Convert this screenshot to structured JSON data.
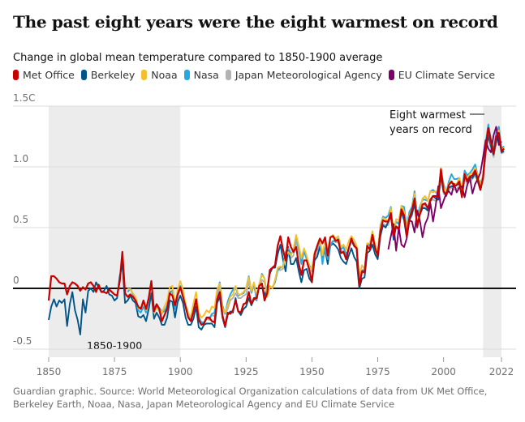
{
  "title": "The past eight years were the eight warmest on record",
  "subtitle": "Change in global mean temperature compared to 1850-1900 average",
  "footer": "Guardian graphic. Source: World Meteorological Organization calculations of data from UK Met Office, Berkeley Earth, Noaa, Nasa, Japan Meteorological Agency and EU Climate Service",
  "colors": {
    "grid": "#dcdcdc",
    "zero_line": "#121212",
    "shade": "#ececec"
  },
  "chart_data": {
    "type": "line",
    "xlim": [
      1850,
      2022
    ],
    "ylim": [
      -0.5,
      1.5
    ],
    "x_ticks": [
      "1850",
      "1875",
      "1900",
      "1925",
      "1950",
      "1975",
      "2000",
      "2022"
    ],
    "y_ticks": [
      "1.5C",
      "1.0",
      "0.5",
      "0",
      "-0.5"
    ],
    "shaded_periods": [
      {
        "range": [
          1850,
          1900
        ],
        "label": "1850-1900"
      },
      {
        "range": [
          2015,
          2022
        ],
        "label": ""
      }
    ],
    "annotation": {
      "line1": "Eight warmest",
      "line2": "years on record"
    },
    "series": [
      {
        "name": "Met Office",
        "color": "#c70000",
        "start_year": 1850,
        "values": [
          -0.1,
          0.1,
          0.1,
          0.08,
          0.05,
          0.04,
          0.04,
          -0.05,
          0.02,
          0.05,
          0.04,
          0.02,
          -0.02,
          0.01,
          -0.01,
          0.04,
          0.05,
          0.02,
          -0.03,
          0.03,
          -0.03,
          -0.03,
          -0.04,
          -0.01,
          -0.03,
          -0.05,
          -0.06,
          0.06,
          0.3,
          -0.04,
          -0.07,
          -0.05,
          -0.07,
          -0.1,
          -0.15,
          -0.17,
          -0.1,
          -0.17,
          -0.08,
          0.06,
          -0.19,
          -0.13,
          -0.17,
          -0.27,
          -0.22,
          -0.17,
          -0.04,
          -0.06,
          -0.14,
          -0.05,
          0.01,
          -0.07,
          -0.15,
          -0.24,
          -0.27,
          -0.19,
          -0.09,
          -0.26,
          -0.3,
          -0.29,
          -0.24,
          -0.24,
          -0.27,
          -0.28,
          -0.09,
          -0.03,
          -0.22,
          -0.31,
          -0.2,
          -0.21,
          -0.18,
          -0.1,
          -0.19,
          -0.2,
          -0.13,
          -0.12,
          -0.03,
          -0.13,
          -0.08,
          -0.08,
          0.02,
          0.04,
          -0.1,
          -0.04,
          0.15,
          0.17,
          0.19,
          0.35,
          0.43,
          0.32,
          0.23,
          0.42,
          0.34,
          0.3,
          0.34,
          0.2,
          0.11,
          0.23,
          0.23,
          0.15,
          0.05,
          0.28,
          0.35,
          0.41,
          0.37,
          0.42,
          0.27,
          0.42,
          0.43,
          0.39,
          0.4,
          0.29,
          0.3,
          0.24,
          0.33,
          0.41,
          0.35,
          0.33,
          0.02,
          0.14,
          0.13,
          0.35,
          0.32,
          0.44,
          0.33,
          0.27,
          0.47,
          0.56,
          0.55,
          0.55,
          0.62,
          0.44,
          0.51,
          0.49,
          0.65,
          0.6,
          0.43,
          0.58,
          0.64,
          0.74,
          0.51,
          0.61,
          0.69,
          0.7,
          0.66,
          0.73,
          0.76,
          0.76,
          0.75,
          0.98,
          0.8,
          0.77,
          0.85,
          0.88,
          0.84,
          0.85,
          0.88,
          0.75,
          0.94,
          0.88,
          0.92,
          0.93,
          0.97,
          0.9,
          0.81,
          0.91,
          1.16,
          1.32,
          1.21,
          1.11,
          1.25,
          1.28,
          1.13,
          1.15
        ]
      },
      {
        "name": "Berkeley",
        "color": "#005689",
        "start_year": 1850,
        "values": [
          -0.26,
          -0.15,
          -0.09,
          -0.15,
          -0.1,
          -0.12,
          -0.09,
          -0.31,
          -0.13,
          -0.03,
          -0.18,
          -0.26,
          -0.38,
          -0.09,
          -0.2,
          -0.02,
          0.0,
          -0.03,
          0.05,
          0.01,
          -0.03,
          -0.02,
          0.02,
          -0.05,
          -0.06,
          -0.1,
          -0.08,
          0.1,
          0.2,
          -0.12,
          -0.1,
          -0.06,
          -0.1,
          -0.12,
          -0.23,
          -0.24,
          -0.22,
          -0.27,
          -0.17,
          -0.04,
          -0.25,
          -0.2,
          -0.24,
          -0.3,
          -0.3,
          -0.24,
          -0.1,
          -0.11,
          -0.24,
          -0.11,
          -0.06,
          -0.12,
          -0.24,
          -0.3,
          -0.3,
          -0.25,
          -0.15,
          -0.32,
          -0.34,
          -0.3,
          -0.29,
          -0.29,
          -0.29,
          -0.32,
          -0.12,
          -0.07,
          -0.24,
          -0.32,
          -0.22,
          -0.19,
          -0.2,
          -0.08,
          -0.19,
          -0.22,
          -0.17,
          -0.15,
          -0.08,
          -0.14,
          -0.09,
          -0.09,
          0.02,
          0.04,
          -0.06,
          0.0,
          0.12,
          0.17,
          0.17,
          0.28,
          0.36,
          0.24,
          0.14,
          0.34,
          0.2,
          0.2,
          0.25,
          0.14,
          0.05,
          0.15,
          0.16,
          0.08,
          0.05,
          0.23,
          0.26,
          0.34,
          0.26,
          0.32,
          0.2,
          0.35,
          0.37,
          0.35,
          0.32,
          0.25,
          0.22,
          0.2,
          0.27,
          0.33,
          0.26,
          0.22,
          -0.0,
          0.08,
          0.09,
          0.29,
          0.31,
          0.36,
          0.28,
          0.24,
          0.43,
          0.52,
          0.5,
          0.55,
          0.6,
          0.4,
          0.51,
          0.48,
          0.63,
          0.56,
          0.42,
          0.56,
          0.61,
          0.7,
          0.5,
          0.61,
          0.66,
          0.66,
          0.64,
          0.72,
          0.76,
          0.74,
          0.73,
          0.93,
          0.8,
          0.76,
          0.83,
          0.84,
          0.84,
          0.85,
          0.86,
          0.78,
          0.91,
          0.9,
          0.91,
          0.91,
          0.95,
          0.88,
          0.81,
          0.91,
          1.12,
          1.26,
          1.17,
          1.1,
          1.21,
          1.26,
          1.12,
          1.13
        ]
      },
      {
        "name": "Noaa",
        "color": "#f5be2c",
        "start_year": 1880,
        "values": [
          -0.0,
          -0.01,
          -0.04,
          -0.07,
          -0.16,
          -0.17,
          -0.12,
          -0.18,
          -0.07,
          0.06,
          -0.2,
          -0.16,
          -0.17,
          -0.2,
          -0.15,
          -0.1,
          0.01,
          0.02,
          -0.14,
          -0.01,
          0.06,
          -0.01,
          -0.13,
          -0.2,
          -0.24,
          -0.12,
          -0.03,
          -0.2,
          -0.24,
          -0.22,
          -0.18,
          -0.2,
          -0.15,
          -0.16,
          -0.01,
          0.04,
          -0.16,
          -0.2,
          -0.14,
          -0.07,
          -0.05,
          0.02,
          -0.05,
          -0.05,
          -0.03,
          0.0,
          0.09,
          -0.02,
          0.05,
          -0.06,
          0.04,
          0.11,
          0.08,
          -0.07,
          0.02,
          0.0,
          0.07,
          0.17,
          0.18,
          0.17,
          0.27,
          0.3,
          0.27,
          0.33,
          0.44,
          0.35,
          0.25,
          0.33,
          0.27,
          0.18,
          0.16,
          0.3,
          0.34,
          0.41,
          0.27,
          0.39,
          0.31,
          0.42,
          0.44,
          0.41,
          0.43,
          0.34,
          0.36,
          0.32,
          0.39,
          0.43,
          0.4,
          0.35,
          0.08,
          0.19,
          0.16,
          0.37,
          0.37,
          0.47,
          0.36,
          0.3,
          0.51,
          0.58,
          0.57,
          0.55,
          0.66,
          0.47,
          0.57,
          0.56,
          0.68,
          0.63,
          0.48,
          0.6,
          0.65,
          0.78,
          0.51,
          0.64,
          0.74,
          0.76,
          0.72,
          0.8,
          0.79,
          0.8,
          0.77,
          0.99,
          0.83,
          0.8,
          0.86,
          0.88,
          0.86,
          0.86,
          0.91,
          0.81,
          0.94,
          0.91,
          0.94,
          0.95,
          0.99,
          0.93,
          0.84,
          0.93,
          1.17,
          1.31,
          1.2,
          1.12,
          1.25,
          1.3,
          1.13,
          1.16
        ]
      },
      {
        "name": "Nasa",
        "color": "#27a8df",
        "start_year": 1880,
        "values": [
          -0.03,
          -0.0,
          -0.05,
          -0.09,
          -0.18,
          -0.2,
          -0.15,
          -0.2,
          -0.09,
          0.04,
          -0.17,
          -0.13,
          -0.16,
          -0.19,
          -0.19,
          -0.14,
          -0.03,
          -0.02,
          -0.17,
          -0.05,
          0.02,
          -0.05,
          -0.16,
          -0.23,
          -0.27,
          -0.17,
          -0.09,
          -0.24,
          -0.28,
          -0.28,
          -0.24,
          -0.25,
          -0.21,
          -0.2,
          -0.02,
          0.05,
          -0.14,
          -0.21,
          -0.11,
          -0.05,
          -0.01,
          0.01,
          -0.06,
          -0.05,
          -0.04,
          0.0,
          0.1,
          -0.03,
          0.04,
          -0.1,
          0.03,
          0.12,
          0.08,
          -0.06,
          0.01,
          0.01,
          0.05,
          0.15,
          0.17,
          0.18,
          0.3,
          0.33,
          0.29,
          0.3,
          0.43,
          0.33,
          0.2,
          0.31,
          0.24,
          0.19,
          0.16,
          0.29,
          0.32,
          0.4,
          0.2,
          0.33,
          0.24,
          0.35,
          0.39,
          0.39,
          0.41,
          0.32,
          0.34,
          0.28,
          0.33,
          0.39,
          0.37,
          0.32,
          0.06,
          0.15,
          0.15,
          0.37,
          0.35,
          0.44,
          0.33,
          0.29,
          0.52,
          0.59,
          0.58,
          0.6,
          0.67,
          0.46,
          0.55,
          0.53,
          0.68,
          0.67,
          0.5,
          0.63,
          0.67,
          0.8,
          0.6,
          0.67,
          0.73,
          0.73,
          0.72,
          0.8,
          0.81,
          0.79,
          0.78,
          0.98,
          0.86,
          0.79,
          0.88,
          0.94,
          0.9,
          0.9,
          0.91,
          0.82,
          0.97,
          0.93,
          0.95,
          0.98,
          1.02,
          0.93,
          0.86,
          0.93,
          1.2,
          1.35,
          1.23,
          1.14,
          1.28,
          1.33,
          1.15,
          1.17
        ]
      },
      {
        "name": "Japan Meteorological Agency",
        "color": "#b3b3b3",
        "start_year": 1891,
        "values": [
          -0.15,
          -0.19,
          -0.21,
          -0.18,
          -0.15,
          -0.04,
          -0.02,
          -0.14,
          -0.06,
          0.0,
          -0.05,
          -0.15,
          -0.22,
          -0.25,
          -0.17,
          -0.09,
          -0.23,
          -0.28,
          -0.29,
          -0.25,
          -0.26,
          -0.22,
          -0.23,
          -0.05,
          0.01,
          -0.17,
          -0.21,
          -0.17,
          -0.1,
          -0.08,
          -0.04,
          -0.08,
          -0.08,
          -0.06,
          -0.05,
          0.05,
          -0.04,
          0.02,
          -0.08,
          0.02,
          0.07,
          0.05,
          -0.06,
          0.01,
          0.0,
          0.06,
          0.15,
          0.15,
          0.16,
          0.25,
          0.27,
          0.25,
          0.27,
          0.38,
          0.31,
          0.22,
          0.3,
          0.24,
          0.16,
          0.14,
          0.25,
          0.29,
          0.35,
          0.23,
          0.34,
          0.27,
          0.37,
          0.39,
          0.38,
          0.38,
          0.3,
          0.31,
          0.26,
          0.33,
          0.38,
          0.35,
          0.32,
          0.05,
          0.15,
          0.14,
          0.34,
          0.32,
          0.42,
          0.32,
          0.27,
          0.47,
          0.53,
          0.52,
          0.52,
          0.6,
          0.45,
          0.51,
          0.48,
          0.63,
          0.59,
          0.44,
          0.56,
          0.6,
          0.71,
          0.51,
          0.6,
          0.66,
          0.69,
          0.65,
          0.72,
          0.73,
          0.72,
          0.73,
          0.91,
          0.78,
          0.76,
          0.81,
          0.83,
          0.81,
          0.82,
          0.84,
          0.75,
          0.9,
          0.86,
          0.88,
          0.9,
          0.93,
          0.88,
          0.81,
          0.89,
          1.1,
          1.25,
          1.16,
          1.08,
          1.19,
          1.23,
          1.11,
          1.12
        ]
      },
      {
        "name": "EU Climate Service",
        "color": "#7d0068",
        "start_year": 1979,
        "values": [
          0.32,
          0.43,
          0.53,
          0.31,
          0.5,
          0.36,
          0.34,
          0.41,
          0.56,
          0.55,
          0.46,
          0.64,
          0.56,
          0.42,
          0.53,
          0.58,
          0.7,
          0.55,
          0.68,
          0.84,
          0.66,
          0.72,
          0.78,
          0.8,
          0.77,
          0.86,
          0.79,
          0.83,
          0.84,
          0.75,
          0.85,
          0.91,
          0.78,
          0.86,
          0.9,
          0.95,
          1.08,
          1.22,
          1.15,
          1.12,
          1.26,
          1.33,
          1.18,
          1.21
        ]
      }
    ]
  }
}
